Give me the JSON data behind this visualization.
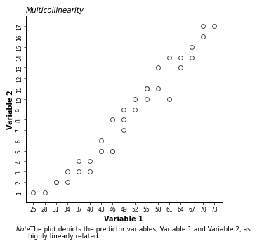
{
  "title": "Multicollinearity",
  "xlabel": "Variable 1",
  "ylabel": "Variable 2",
  "note_italic": "Note.",
  "note_rest": " The plot depicts the predictor variables, Variable 1 and Variable 2, as\nhighly linearly related.",
  "x_data": [
    25,
    28,
    31,
    31,
    34,
    34,
    37,
    37,
    40,
    40,
    43,
    43,
    46,
    46,
    46,
    49,
    49,
    49,
    52,
    52,
    55,
    55,
    55,
    58,
    58,
    61,
    61,
    64,
    64,
    67,
    67,
    70,
    70,
    73
  ],
  "y_data": [
    1,
    1,
    2,
    2,
    2,
    3,
    3,
    4,
    3,
    4,
    5,
    6,
    5,
    8,
    5,
    7,
    8,
    9,
    9,
    10,
    10,
    11,
    11,
    11,
    13,
    14,
    10,
    13,
    14,
    15,
    14,
    16,
    17,
    17
  ],
  "x_ticks": [
    25,
    28,
    31,
    34,
    37,
    40,
    43,
    46,
    49,
    52,
    55,
    58,
    61,
    64,
    67,
    70,
    73
  ],
  "y_ticks": [
    1,
    2,
    3,
    4,
    5,
    6,
    7,
    8,
    9,
    10,
    11,
    12,
    13,
    14,
    15,
    16,
    17
  ],
  "xlim": [
    23,
    75
  ],
  "ylim": [
    0,
    18
  ],
  "marker_size": 18,
  "marker_color": "white",
  "marker_edge_color": "#444444",
  "marker_edge_width": 0.7,
  "background_color": "#ffffff",
  "title_fontsize": 7.5,
  "xlabel_fontsize": 7,
  "ylabel_fontsize": 7,
  "tick_fontsize": 5.5,
  "note_fontsize": 6.5,
  "spine_linewidth": 0.7
}
